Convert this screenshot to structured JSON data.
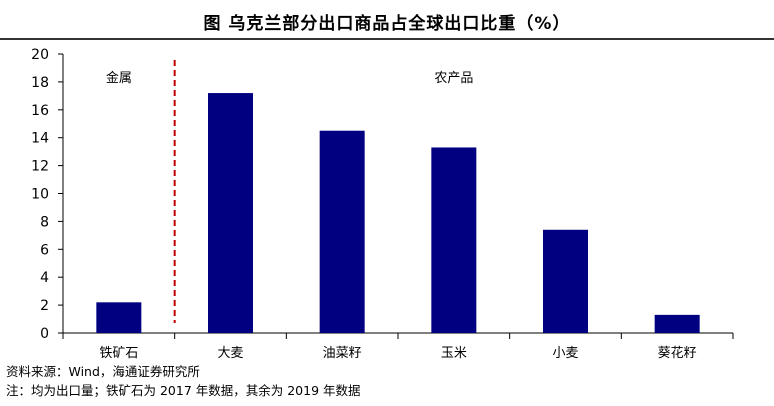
{
  "title": "图  乌克兰部分出口商品占全球出口比重（%）",
  "chart_data": {
    "type": "bar",
    "categories": [
      "铁矿石",
      "大麦",
      "油菜籽",
      "玉米",
      "小麦",
      "葵花籽"
    ],
    "values": [
      2.2,
      17.2,
      14.5,
      13.3,
      7.4,
      1.3
    ],
    "ylim": [
      0,
      20
    ],
    "yticks": [
      0,
      2,
      4,
      6,
      8,
      10,
      12,
      14,
      16,
      18,
      20
    ],
    "bar_color": "#000080",
    "divider_color": "#c00000",
    "group_labels": [
      {
        "text": "金属"
      },
      {
        "text": "农产品"
      }
    ]
  },
  "notes": {
    "source": "资料来源：Wind，海通证券研究所",
    "note": "注：均为出口量；铁矿石为 2017 年数据，其余为 2019 年数据"
  }
}
